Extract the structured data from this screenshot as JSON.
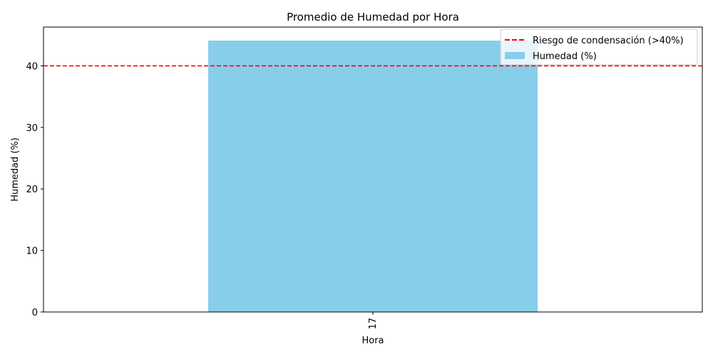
{
  "chart_data": {
    "type": "bar",
    "title": "Promedio de Humedad por Hora",
    "xlabel": "Hora",
    "ylabel": "Humedad (%)",
    "categories": [
      "17"
    ],
    "series": [
      {
        "name": "Humedad (%)",
        "values": [
          44.1
        ],
        "color": "#87ceeb"
      }
    ],
    "threshold": {
      "name": "Riesgo de condensación (>40%)",
      "value": 40,
      "color": "#ff0000",
      "style": "dashed"
    },
    "ylim": [
      0,
      46.3
    ],
    "yticks": [
      0,
      10,
      20,
      30,
      40
    ],
    "grid": false,
    "legend_position": "top-right"
  }
}
